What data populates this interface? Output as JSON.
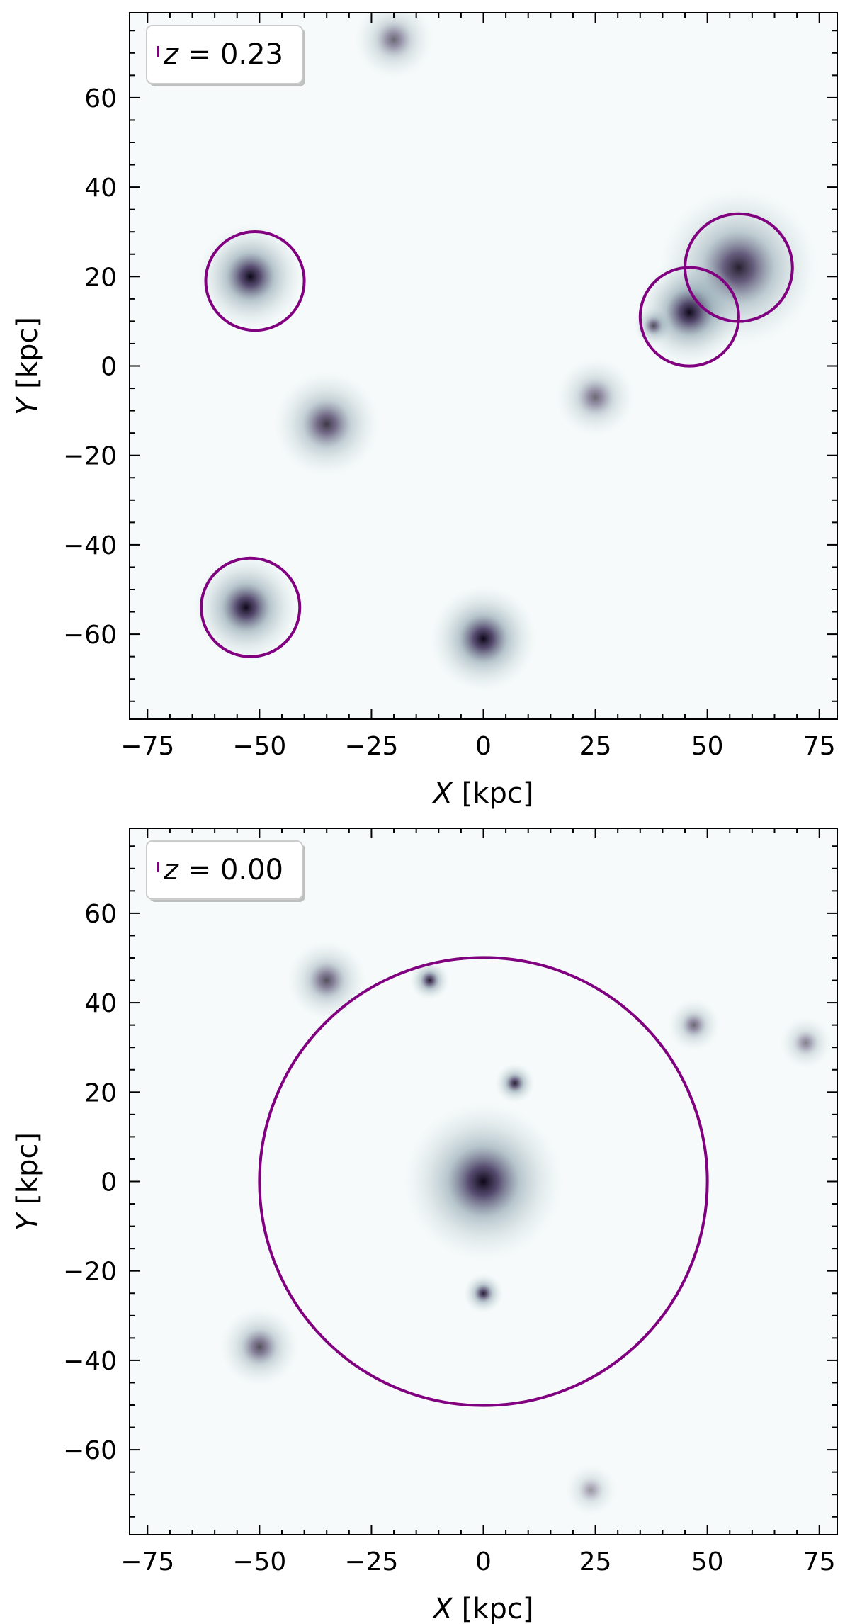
{
  "chart_data": [
    {
      "type": "scatter",
      "title": "",
      "xlabel_var": "X",
      "xlabel_unit": "[kpc]",
      "ylabel_var": "Y",
      "ylabel_unit": "[kpc]",
      "xlim": [
        -79,
        79
      ],
      "ylim": [
        -79,
        79
      ],
      "xticks": [
        -75,
        -50,
        -25,
        0,
        25,
        50,
        75
      ],
      "yticks": [
        -60,
        -40,
        -20,
        0,
        20,
        40,
        60
      ],
      "xtick_labels": [
        "−75",
        "−50",
        "−25",
        "0",
        "25",
        "50",
        "75"
      ],
      "ytick_labels": [
        "−60",
        "−40",
        "−20",
        "0",
        "20",
        "40",
        "60"
      ],
      "grid": false,
      "legend": {
        "label": "z = 0.23",
        "placement": "top-left",
        "marker_color": "#800080"
      },
      "circle_color": "#800080",
      "circles": [
        {
          "x": -51,
          "y": 19,
          "r": 11
        },
        {
          "x": 57,
          "y": 22,
          "r": 12
        },
        {
          "x": 46,
          "y": 11,
          "r": 11
        },
        {
          "x": -52,
          "y": -54,
          "r": 11
        }
      ],
      "clumps": [
        {
          "x": -52,
          "y": 20,
          "sigma": 4,
          "peak": 1.0
        },
        {
          "x": 57,
          "y": 22,
          "sigma": 6,
          "peak": 0.9
        },
        {
          "x": 46,
          "y": 12,
          "sigma": 4,
          "peak": 1.0
        },
        {
          "x": -53,
          "y": -54,
          "sigma": 4,
          "peak": 1.0
        },
        {
          "x": 0,
          "y": -61,
          "sigma": 4,
          "peak": 1.0
        },
        {
          "x": -35,
          "y": -13,
          "sigma": 4,
          "peak": 0.8
        },
        {
          "x": 25,
          "y": -7,
          "sigma": 3,
          "peak": 0.6
        },
        {
          "x": -20,
          "y": 73,
          "sigma": 3,
          "peak": 0.6
        },
        {
          "x": 38,
          "y": 9,
          "sigma": 1.5,
          "peak": 0.7
        }
      ]
    },
    {
      "type": "scatter",
      "title": "",
      "xlabel_var": "X",
      "xlabel_unit": "[kpc]",
      "ylabel_var": "Y",
      "ylabel_unit": "[kpc]",
      "xlim": [
        -79,
        79
      ],
      "ylim": [
        -79,
        79
      ],
      "xticks": [
        -75,
        -50,
        -25,
        0,
        25,
        50,
        75
      ],
      "yticks": [
        -60,
        -40,
        -20,
        0,
        20,
        40,
        60
      ],
      "xtick_labels": [
        "−75",
        "−50",
        "−25",
        "0",
        "25",
        "50",
        "75"
      ],
      "ytick_labels": [
        "−60",
        "−40",
        "−20",
        "0",
        "20",
        "40",
        "60"
      ],
      "grid": false,
      "legend": {
        "label": "z = 0.00",
        "placement": "top-left",
        "marker_color": "#800080"
      },
      "circle_color": "#800080",
      "circles": [
        {
          "x": 0,
          "y": 0,
          "r": 50
        }
      ],
      "clumps": [
        {
          "x": 0,
          "y": 0,
          "sigma": 6,
          "peak": 1.0
        },
        {
          "x": -35,
          "y": 45,
          "sigma": 3,
          "peak": 0.7
        },
        {
          "x": -12,
          "y": 45,
          "sigma": 1.5,
          "peak": 0.9
        },
        {
          "x": 7,
          "y": 22,
          "sigma": 1.5,
          "peak": 0.9
        },
        {
          "x": 0,
          "y": -25,
          "sigma": 1.5,
          "peak": 0.9
        },
        {
          "x": 47,
          "y": 35,
          "sigma": 2,
          "peak": 0.6
        },
        {
          "x": 72,
          "y": 31,
          "sigma": 2,
          "peak": 0.5
        },
        {
          "x": -50,
          "y": -37,
          "sigma": 3,
          "peak": 0.7
        },
        {
          "x": 24,
          "y": -69,
          "sigma": 2,
          "peak": 0.4
        }
      ]
    }
  ]
}
